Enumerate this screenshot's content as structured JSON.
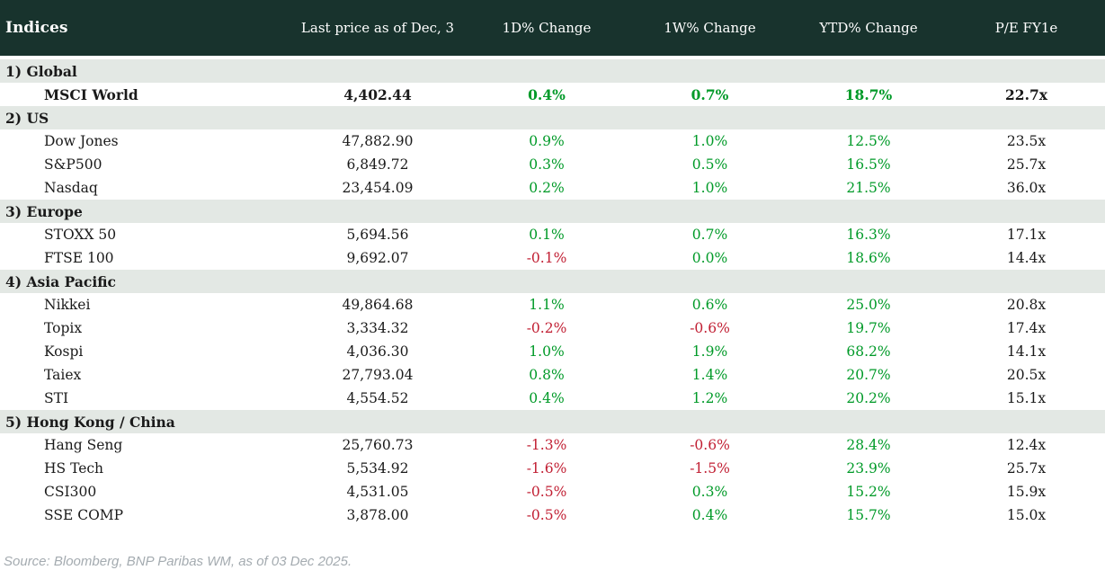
{
  "header": {
    "columns": [
      "Indices",
      "Last price as of Dec, 3",
      "1D% Change",
      "1W% Change",
      "YTD% Change",
      "P/E FY1e"
    ]
  },
  "sections": [
    {
      "label": "1) Global",
      "rows": [
        {
          "name": "MSCI World",
          "price": "4,402.44",
          "d1": "0.4%",
          "w1": "0.7%",
          "ytd": "18.7%",
          "pe": "22.7x",
          "bold": true
        }
      ]
    },
    {
      "label": "2) US",
      "rows": [
        {
          "name": "Dow Jones",
          "price": "47,882.90",
          "d1": "0.9%",
          "w1": "1.0%",
          "ytd": "12.5%",
          "pe": "23.5x"
        },
        {
          "name": "S&P500",
          "price": "6,849.72",
          "d1": "0.3%",
          "w1": "0.5%",
          "ytd": "16.5%",
          "pe": "25.7x"
        },
        {
          "name": "Nasdaq",
          "price": "23,454.09",
          "d1": "0.2%",
          "w1": "1.0%",
          "ytd": "21.5%",
          "pe": "36.0x"
        }
      ]
    },
    {
      "label": "3) Europe",
      "rows": [
        {
          "name": "STOXX 50",
          "price": "5,694.56",
          "d1": "0.1%",
          "w1": "0.7%",
          "ytd": "16.3%",
          "pe": "17.1x"
        },
        {
          "name": "FTSE 100",
          "price": "9,692.07",
          "d1": "-0.1%",
          "w1": "0.0%",
          "ytd": "18.6%",
          "pe": "14.4x"
        }
      ]
    },
    {
      "label": "4) Asia Pacific",
      "rows": [
        {
          "name": "Nikkei",
          "price": "49,864.68",
          "d1": "1.1%",
          "w1": "0.6%",
          "ytd": "25.0%",
          "pe": "20.8x"
        },
        {
          "name": "Topix",
          "price": "3,334.32",
          "d1": "-0.2%",
          "w1": "-0.6%",
          "ytd": "19.7%",
          "pe": "17.4x"
        },
        {
          "name": "Kospi",
          "price": "4,036.30",
          "d1": "1.0%",
          "w1": "1.9%",
          "ytd": "68.2%",
          "pe": "14.1x"
        },
        {
          "name": "Taiex",
          "price": "27,793.04",
          "d1": "0.8%",
          "w1": "1.4%",
          "ytd": "20.7%",
          "pe": "20.5x"
        },
        {
          "name": "STI",
          "price": "4,554.52",
          "d1": "0.4%",
          "w1": "1.2%",
          "ytd": "20.2%",
          "pe": "15.1x"
        }
      ]
    },
    {
      "label": "5) Hong Kong / China",
      "rows": [
        {
          "name": "Hang Seng",
          "price": "25,760.73",
          "d1": "-1.3%",
          "w1": "-0.6%",
          "ytd": "28.4%",
          "pe": "12.4x"
        },
        {
          "name": "HS Tech",
          "price": "5,534.92",
          "d1": "-1.6%",
          "w1": "-1.5%",
          "ytd": "23.9%",
          "pe": "25.7x"
        },
        {
          "name": "CSI300",
          "price": "4,531.05",
          "d1": "-0.5%",
          "w1": "0.3%",
          "ytd": "15.2%",
          "pe": "15.9x"
        },
        {
          "name": "SSE COMP",
          "price": "3,878.00",
          "d1": "-0.5%",
          "w1": "0.4%",
          "ytd": "15.7%",
          "pe": "15.0x"
        }
      ]
    }
  ],
  "footer": {
    "source": "Source: Bloomberg, BNP Paribas WM, as of 03 Dec 2025."
  },
  "colors": {
    "header_bg": "#18332d",
    "section_bg": "#e3e8e4",
    "positive": "#009a28",
    "negative": "#c11f33"
  }
}
